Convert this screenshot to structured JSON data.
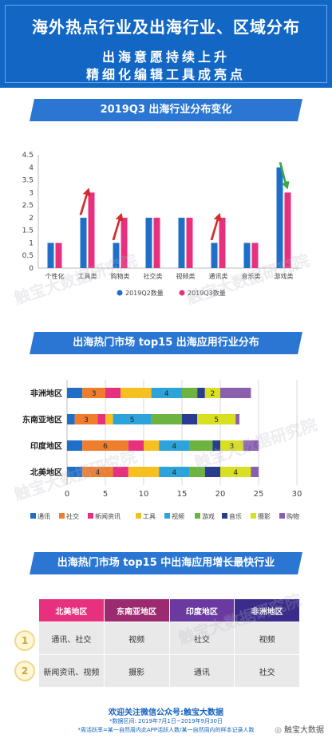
{
  "header": {
    "title": "海外热点行业及出海行业、区域分布",
    "subtitle1": "出海意愿持续上升",
    "subtitle2": "精细化编辑工具成亮点"
  },
  "sections": {
    "s1": "2019Q3 出海行业分布变化",
    "s2": "出海热门市场 top15 出海应用行业分布",
    "s3": "出海热门市场 top15 中出海应用增长最快行业"
  },
  "colors": {
    "q2": "#1f6fc8",
    "q3": "#e8317e",
    "up_arrow": "#d42a2a",
    "down_arrow": "#3aa846"
  },
  "chart_data": [
    {
      "type": "bar",
      "categories": [
        "个性化",
        "工具类",
        "购物类",
        "社交类",
        "视频类",
        "通讯类",
        "音乐类",
        "游戏类"
      ],
      "series": [
        {
          "name": "2019Q2数量",
          "values": [
            1,
            2,
            1,
            2,
            2,
            1,
            1,
            4
          ]
        },
        {
          "name": "2019Q3数量",
          "values": [
            1,
            3,
            2,
            2,
            2,
            2,
            1,
            3
          ]
        }
      ],
      "ylim": [
        0,
        4.5
      ],
      "yticks": [
        "0",
        "0.5",
        "1",
        "1.5",
        "2",
        "2.5",
        "3",
        "3.5",
        "4",
        "4.5"
      ],
      "xlabel": "",
      "ylabel": "",
      "legend_position": "bottom",
      "annotations": {
        "up": [
          "工具类",
          "购物类",
          "通讯类"
        ],
        "down": [
          "游戏类"
        ]
      }
    },
    {
      "type": "bar",
      "orientation": "horizontal-stacked",
      "categories": [
        "非洲地区",
        "东南亚地区",
        "印度地区",
        "北美地区"
      ],
      "segment_names": [
        "通讯",
        "社交",
        "新闻资讯",
        "工具",
        "视频",
        "游戏",
        "音乐",
        "摄影",
        "购物"
      ],
      "segment_colors": [
        "#1f6fc8",
        "#ee7d2e",
        "#e8317e",
        "#f6c021",
        "#2da4d9",
        "#6db33f",
        "#2a3c8f",
        "#d9e021",
        "#8a5fae"
      ],
      "rows": [
        [
          2,
          3,
          2,
          4,
          4,
          2,
          1,
          2,
          4
        ],
        [
          1,
          3,
          1,
          1,
          5,
          4,
          2,
          5,
          0.5
        ],
        [
          2,
          6,
          2,
          2,
          4,
          3,
          1,
          3,
          2
        ],
        [
          2,
          4,
          2,
          4,
          4,
          2,
          2,
          4,
          1
        ]
      ],
      "labels": [
        [
          "",
          "3",
          "",
          "",
          "4",
          "",
          "",
          "2",
          ""
        ],
        [
          "",
          "3",
          "",
          "",
          "5",
          "",
          "",
          "5",
          ""
        ],
        [
          "",
          "6",
          "",
          "",
          "4",
          "",
          "",
          "3",
          ""
        ],
        [
          "",
          "4",
          "",
          "",
          "4",
          "",
          "",
          "4",
          ""
        ]
      ],
      "xlim": [
        0,
        30
      ],
      "xticks": [
        "0",
        "5",
        "10",
        "15",
        "20",
        "25",
        "30"
      ],
      "legend_position": "bottom"
    }
  ],
  "table": {
    "headers": [
      "北美地区",
      "东南亚地区",
      "印度地区",
      "非洲地区"
    ],
    "header_colors": [
      "#e8317e",
      "#9b2a6f",
      "#6b3aa0",
      "#3c2c8a"
    ],
    "ranks": [
      "1",
      "2"
    ],
    "rows": [
      [
        "通讯、社交",
        "视频",
        "社交",
        "视频"
      ],
      [
        "新闻资讯、视频",
        "摄影",
        "通讯",
        "社交"
      ]
    ]
  },
  "footer": {
    "line1": "欢迎关注微信公众号:触宝大数据",
    "line2": "*数据区间: 2019年7月1日~2019年9月30日",
    "line3": "*周活跃率=某一自然周内此APP活跃人数/某一自然周内的样本记录人数",
    "wechat": "触宝大数据"
  },
  "watermark": [
    "触宝",
    "大数据研究院"
  ]
}
